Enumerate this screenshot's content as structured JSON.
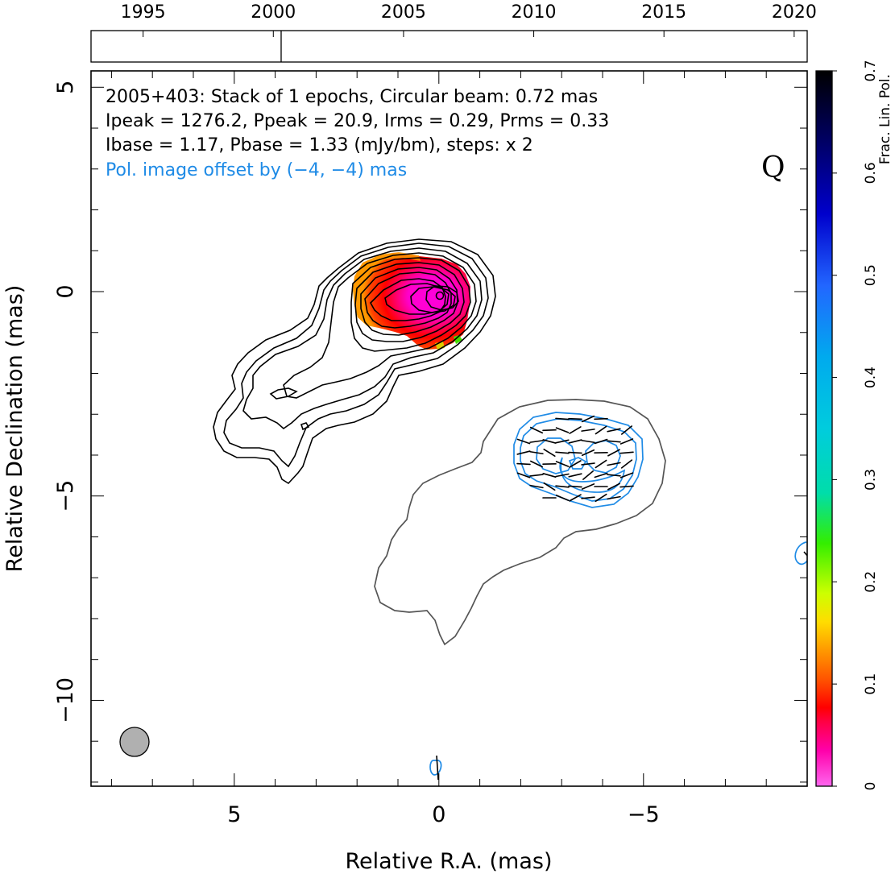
{
  "chart_data": {
    "type": "image",
    "source": "2005+403",
    "panel_letter": "Q",
    "header_lines": [
      "2005+403: Stack of 1 epochs, Circular beam: 0.72 mas",
      "Ipeak = 1276.2, Ppeak = 20.9, Irms = 0.29, Prms = 0.33",
      "Ibase = 1.17, Pbase = 1.33 (mJy/bm), steps: x 2"
    ],
    "offset_note": "Pol. image offset by (−4, −4) mas",
    "xlabel": "Relative R.A. (mas)",
    "ylabel": "Relative Declination (mas)",
    "xlim": [
      8.5,
      -9
    ],
    "ylim": [
      -12.1,
      5.4
    ],
    "x_major_ticks": [
      5,
      0,
      -5
    ],
    "x_tick_labels": [
      "5",
      "0",
      "−5"
    ],
    "y_major_ticks": [
      5,
      0,
      -5,
      -10
    ],
    "y_tick_labels": [
      "5",
      "0",
      "−5",
      "−10"
    ],
    "beam": {
      "ra": 7.5,
      "dec": -10.95,
      "diameter_mas": 0.72
    },
    "timeline": {
      "range": [
        1993,
        2020.5
      ],
      "tick_years": [
        1995,
        2000,
        2005,
        2010,
        2015,
        2020
      ],
      "tick_labels": [
        "1995",
        "2000",
        "2005",
        "2010",
        "2015",
        "2020"
      ],
      "epochs": [
        2000.3
      ]
    },
    "colorbar": {
      "label": "Frac. Lin. Pol.",
      "range": [
        0,
        0.7
      ],
      "ticks": [
        0,
        0.1,
        0.2,
        0.3,
        0.4,
        0.5,
        0.6,
        0.7
      ],
      "tick_labels": [
        "0",
        "0.1",
        "0.2",
        "0.3",
        "0.4",
        "0.5",
        "0.6",
        "0.7"
      ],
      "stops": [
        "#ff66ee",
        "#ff00aa",
        "#ff0044",
        "#ff0000",
        "#ff5500",
        "#ff9900",
        "#ffdd00",
        "#ccff00",
        "#33ee00",
        "#00ddaa",
        "#00ccdd",
        "#00aaee",
        "#2266ff",
        "#0000cc",
        "#000066",
        "#000000"
      ]
    },
    "stokes_i_peak": [
      0,
      0
    ],
    "polarized_peak_offset": [
      -4,
      -4
    ],
    "colors": {
      "total_intensity": "#000000",
      "polarized": "#1f8be6",
      "evpa": "#000000",
      "pol_outline": "#555555"
    }
  }
}
